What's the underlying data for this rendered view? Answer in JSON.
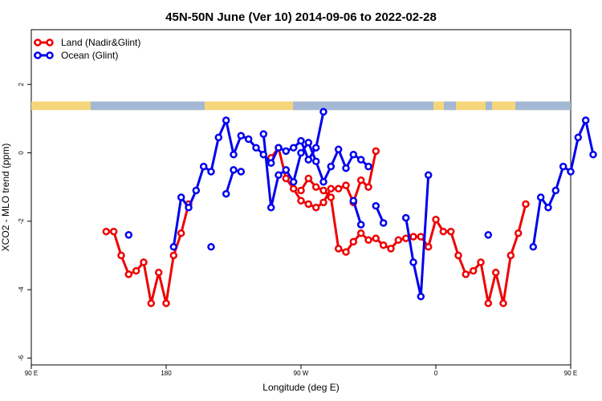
{
  "chart_data": {
    "type": "line",
    "title": "45N-50N June (Ver 10)   2014-09-06 to 2022-02-28",
    "xlabel": "Longitude (deg E)",
    "ylabel": "XCO2 - MLO trend (ppm)",
    "xlim": [
      90,
      450
    ],
    "ylim": [
      -6.2,
      3.6
    ],
    "x_ticks": [
      {
        "value": 90,
        "label": "90 E"
      },
      {
        "value": 180,
        "label": "180"
      },
      {
        "value": 270,
        "label": "90 W"
      },
      {
        "value": 360,
        "label": "0"
      },
      {
        "value": 450,
        "label": "90 E"
      },
      {
        "value": 540,
        "label": "180"
      }
    ],
    "y_ticks": [
      {
        "value": -6,
        "label": "-6"
      },
      {
        "value": -4,
        "label": "-4"
      },
      {
        "value": -2,
        "label": "-2"
      },
      {
        "value": 0,
        "label": "0"
      },
      {
        "value": 2,
        "label": "2"
      }
    ],
    "legend_position": "top-left",
    "land_ocean_strip": {
      "y_range": [
        1.25,
        1.5
      ],
      "land_color": "#f6d67a",
      "ocean_color": "#a4b8d6"
    },
    "series": [
      {
        "name": "Land (Nadir&Glint)",
        "color": "#ee0000",
        "points": [
          [
            -130,
            -2.3
          ],
          [
            -125,
            -2.3
          ],
          [
            -120,
            -3.0
          ],
          [
            -115,
            -3.55
          ],
          [
            -110,
            -3.45
          ],
          [
            -105,
            -3.2
          ],
          [
            -100,
            -4.4
          ],
          [
            -95,
            -3.5
          ],
          [
            -90,
            -4.4
          ],
          [
            -85,
            -3.0
          ],
          [
            -80,
            -2.35
          ],
          [
            -75,
            -1.5
          ],
          null,
          [
            -20,
            -0.15
          ],
          [
            -15,
            0.15
          ],
          [
            -10,
            -0.75
          ],
          [
            -5,
            -1.05
          ],
          [
            0,
            -1.4
          ],
          [
            5,
            -1.5
          ],
          [
            10,
            -1.6
          ],
          [
            15,
            -1.45
          ],
          [
            20,
            -1.05
          ],
          [
            25,
            -1.05
          ],
          [
            30,
            -0.95
          ],
          [
            35,
            -1.45
          ],
          [
            40,
            -0.8
          ],
          [
            45,
            -1.0
          ],
          [
            50,
            0.05
          ],
          null,
          [
            0,
            -1.1
          ],
          [
            5,
            -0.75
          ],
          [
            10,
            -1.0
          ],
          [
            15,
            -1.1
          ],
          [
            20,
            -1.3
          ],
          [
            25,
            -2.8
          ],
          [
            30,
            -2.9
          ],
          [
            35,
            -2.6
          ],
          [
            40,
            -2.35
          ],
          [
            45,
            -2.55
          ],
          [
            50,
            -2.5
          ],
          [
            55,
            -2.7
          ],
          [
            60,
            -2.8
          ],
          [
            65,
            -2.55
          ],
          [
            70,
            -2.5
          ],
          [
            75,
            -2.45
          ],
          [
            80,
            -2.45
          ],
          [
            85,
            -2.75
          ],
          [
            90,
            -1.95
          ],
          [
            95,
            -2.3
          ],
          [
            100,
            -2.3
          ],
          [
            105,
            -3.0
          ],
          [
            110,
            -3.55
          ],
          [
            115,
            -3.45
          ],
          [
            120,
            -3.2
          ],
          [
            125,
            -4.4
          ],
          [
            130,
            -3.5
          ],
          [
            135,
            -4.4
          ],
          [
            140,
            -3.0
          ],
          [
            145,
            -2.35
          ],
          [
            150,
            -1.5
          ]
        ]
      },
      {
        "name": "Ocean (Glint)",
        "color": "#0000ee",
        "points": [
          [
            -115,
            -2.4
          ],
          null,
          [
            -85,
            -2.75
          ],
          [
            -80,
            -1.3
          ],
          [
            -75,
            -1.6
          ],
          [
            -70,
            -1.1
          ],
          [
            -65,
            -0.4
          ],
          [
            -60,
            -0.55
          ],
          [
            -55,
            0.45
          ],
          [
            -50,
            0.95
          ],
          [
            -45,
            -0.05
          ],
          [
            -40,
            0.5
          ],
          [
            -35,
            0.4
          ],
          [
            -30,
            0.15
          ],
          [
            -25,
            -0.05
          ],
          [
            -20,
            -0.3
          ],
          [
            -15,
            0.15
          ],
          [
            -10,
            0.05
          ],
          [
            -5,
            0.15
          ],
          [
            0,
            0.35
          ],
          [
            5,
            -0.2
          ],
          [
            10,
            0.15
          ],
          [
            15,
            1.2
          ],
          null,
          [
            -60,
            -2.75
          ],
          null,
          [
            -50,
            -1.2
          ],
          [
            -45,
            -0.5
          ],
          [
            -40,
            -0.55
          ],
          null,
          [
            -25,
            0.55
          ],
          [
            -20,
            -1.6
          ],
          [
            -15,
            -0.65
          ],
          [
            -10,
            -0.5
          ],
          [
            -5,
            -0.85
          ],
          [
            0,
            0.0
          ],
          [
            5,
            0.3
          ],
          [
            10,
            -0.25
          ],
          [
            15,
            -0.85
          ],
          [
            20,
            -0.4
          ],
          [
            25,
            0.1
          ],
          [
            30,
            -0.45
          ],
          [
            35,
            -0.05
          ],
          [
            40,
            -0.2
          ],
          [
            45,
            -0.4
          ],
          null,
          [
            35,
            -1.4
          ],
          [
            40,
            -2.1
          ],
          null,
          [
            50,
            -1.55
          ],
          [
            55,
            -2.05
          ],
          null,
          [
            70,
            -1.9
          ],
          [
            75,
            -3.2
          ],
          [
            80,
            -4.2
          ],
          [
            85,
            -0.65
          ],
          null,
          [
            125,
            -2.4
          ],
          null,
          [
            155,
            -2.75
          ],
          [
            160,
            -1.3
          ],
          [
            165,
            -1.6
          ],
          [
            170,
            -1.1
          ],
          [
            175,
            -0.4
          ],
          [
            180,
            -0.55
          ],
          [
            185,
            0.45
          ],
          [
            190,
            0.95
          ],
          [
            195,
            -0.05
          ]
        ]
      }
    ]
  }
}
